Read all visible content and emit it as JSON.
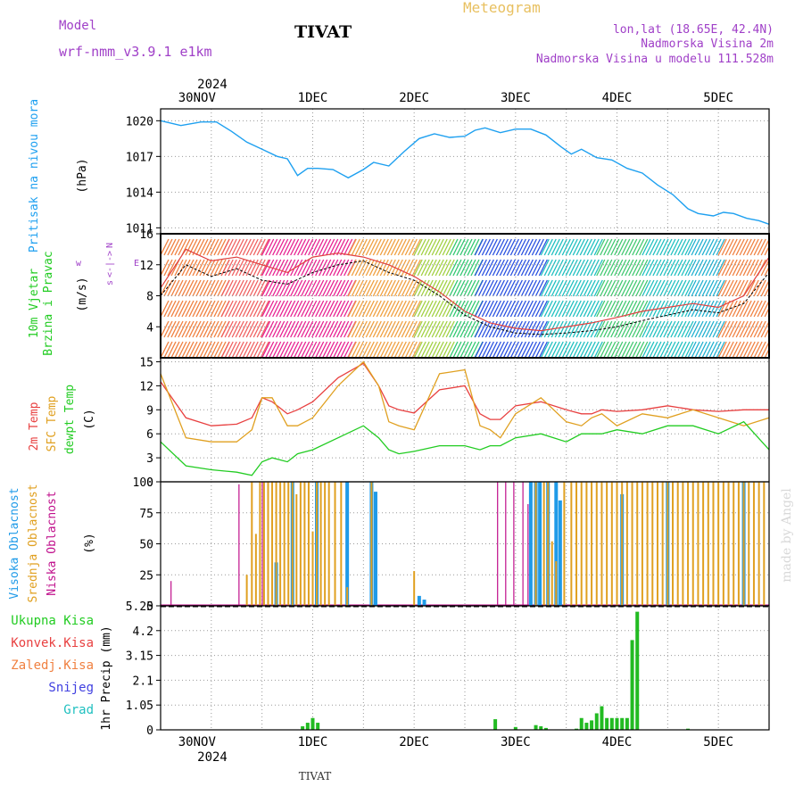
{
  "header": {
    "model_label": "Model",
    "model_name": "wrf-nmm_v3.9.1 e1km",
    "station": "TIVAT",
    "chart_title": "Meteogram",
    "location": "lon,lat (18.65E, 42.4N)",
    "elevation": "Nadmorska Visina 2m",
    "model_elevation": "Nadmorska Visina u modelu 111.528m",
    "footer_station": "TIVAT",
    "credit": "made by Angel"
  },
  "colors": {
    "pressure": "#1ea0f0",
    "wind_speed_line": "#000000",
    "gust_line": "#e04040",
    "temp2m": "#e84040",
    "sfc_temp": "#e0a020",
    "dewpt": "#22cc22",
    "cloud_high": "#1e9ae8",
    "cloud_mid": "#e0a020",
    "cloud_low": "#c0108c",
    "precip_total": "#22bb22",
    "title": "#e8c060",
    "meta": "#a040c8"
  },
  "chart_data": [
    {
      "id": "pressure",
      "type": "line",
      "ylabel_outer": "Pritisak na nivou mora",
      "ylabel_unit": "(hPa)",
      "ylim": [
        1010.5,
        1021
      ],
      "yticks": [
        "1020",
        "1017",
        "1014",
        "1011"
      ],
      "ytick_values": [
        1020,
        1017,
        1014,
        1011
      ],
      "x_days": [
        0,
        0.2,
        0.4,
        0.55,
        0.7,
        0.85,
        1.0,
        1.15,
        1.25,
        1.35,
        1.45,
        1.55,
        1.7,
        1.85,
        2.0,
        2.1,
        2.25,
        2.4,
        2.55,
        2.7,
        2.85,
        3.0,
        3.1,
        3.2,
        3.35,
        3.5,
        3.65,
        3.8,
        3.95,
        4.05,
        4.15,
        4.3,
        4.45,
        4.6,
        4.75,
        4.9,
        5.05,
        5.2,
        5.3,
        5.45,
        5.55,
        5.65,
        5.78,
        5.9,
        6.0
      ],
      "values": [
        1020.0,
        1019.6,
        1019.9,
        1019.9,
        1019.1,
        1018.2,
        1017.6,
        1017.0,
        1016.8,
        1015.4,
        1016.0,
        1016.0,
        1015.9,
        1015.2,
        1015.9,
        1016.5,
        1016.2,
        1017.4,
        1018.5,
        1018.9,
        1018.6,
        1018.7,
        1019.2,
        1019.4,
        1019.0,
        1019.3,
        1019.3,
        1018.8,
        1017.8,
        1017.2,
        1017.6,
        1016.9,
        1016.7,
        1016.0,
        1015.6,
        1014.6,
        1013.8,
        1012.6,
        1012.2,
        1012.0,
        1012.3,
        1012.2,
        1011.8,
        1011.6,
        1011.3
      ]
    },
    {
      "id": "wind",
      "type": "line",
      "ylabel_outer": "10m Vjetar Brzina i Pravac",
      "ylabel_outer_lines": [
        "10m Vjetar",
        "Brzina i Pravac"
      ],
      "ylabel_unit": "(m/s)",
      "ylim": [
        0,
        16
      ],
      "yticks": [
        "16",
        "12",
        "8",
        "4"
      ],
      "ytick_values": [
        16,
        12,
        8,
        4
      ],
      "compass": {
        "north": "N",
        "west": "w",
        "east": "E",
        "south": "s",
        "arrow": "<-|->"
      },
      "x_days": [
        0,
        0.25,
        0.5,
        0.75,
        1.0,
        1.25,
        1.5,
        1.75,
        2.0,
        2.25,
        2.5,
        2.75,
        3.0,
        3.25,
        3.5,
        3.75,
        4.0,
        4.25,
        4.5,
        4.75,
        5.0,
        5.25,
        5.5,
        5.75,
        6.0
      ],
      "speed": [
        8.0,
        12.0,
        10.5,
        11.5,
        10.0,
        9.5,
        11.0,
        12.0,
        12.5,
        11.0,
        10.0,
        8.0,
        5.5,
        4.0,
        3.2,
        3.0,
        3.2,
        3.5,
        4.0,
        4.8,
        5.5,
        6.2,
        5.8,
        7.0,
        11.0
      ],
      "gust": [
        9.0,
        14.0,
        12.5,
        13.0,
        12.0,
        11.0,
        13.0,
        13.5,
        13.0,
        12.0,
        10.5,
        8.5,
        6.0,
        4.5,
        3.8,
        3.5,
        4.0,
        4.5,
        5.2,
        6.0,
        6.5,
        7.0,
        6.5,
        8.0,
        13.0
      ],
      "barb_direction_bands": [
        {
          "from": 0.0,
          "to": 0.6,
          "color": "#f08040"
        },
        {
          "from": 0.6,
          "to": 1.0,
          "color": "#f06060"
        },
        {
          "from": 1.0,
          "to": 1.85,
          "color": "#e82090"
        },
        {
          "from": 1.85,
          "to": 2.5,
          "color": "#f0a040"
        },
        {
          "from": 2.5,
          "to": 2.85,
          "color": "#a0d040"
        },
        {
          "from": 2.85,
          "to": 3.1,
          "color": "#30c870"
        },
        {
          "from": 3.1,
          "to": 3.75,
          "color": "#2850e0"
        },
        {
          "from": 3.75,
          "to": 4.3,
          "color": "#20c0c0"
        },
        {
          "from": 4.3,
          "to": 4.75,
          "color": "#40c870"
        },
        {
          "from": 4.75,
          "to": 5.2,
          "color": "#20c0c0"
        },
        {
          "from": 5.2,
          "to": 5.5,
          "color": "#20b0d0"
        },
        {
          "from": 5.5,
          "to": 6.0,
          "color": "#f08040"
        }
      ]
    },
    {
      "id": "temperature",
      "type": "line",
      "ylabel_outer_lines": [
        "2m Temp",
        "SFC Temp",
        "dewpt Temp"
      ],
      "ylabel_unit": "(C)",
      "ylim": [
        0,
        15.5
      ],
      "yticks": [
        "15",
        "12",
        "9",
        "6",
        "3",
        "0"
      ],
      "ytick_values": [
        15,
        12,
        9,
        6,
        3,
        0
      ],
      "x_days": [
        0,
        0.25,
        0.5,
        0.75,
        0.9,
        1.0,
        1.1,
        1.25,
        1.35,
        1.5,
        1.75,
        2.0,
        2.15,
        2.25,
        2.35,
        2.5,
        2.75,
        3.0,
        3.15,
        3.25,
        3.35,
        3.5,
        3.75,
        4.0,
        4.15,
        4.25,
        4.35,
        4.5,
        4.75,
        5.0,
        5.25,
        5.5,
        5.75,
        6.0
      ],
      "t2m": [
        12.5,
        8.0,
        7.0,
        7.2,
        8.0,
        10.5,
        10.0,
        8.5,
        9.0,
        10.0,
        13.0,
        14.8,
        12.0,
        9.5,
        9.0,
        8.6,
        11.5,
        12.0,
        8.5,
        7.8,
        7.8,
        9.5,
        10.0,
        9.0,
        8.5,
        8.5,
        9.0,
        8.8,
        9.0,
        9.5,
        9.0,
        8.8,
        9.0,
        9.0
      ],
      "sfc": [
        13.5,
        5.5,
        5.0,
        5.0,
        6.5,
        10.5,
        10.5,
        7.0,
        7.0,
        8.0,
        12.0,
        15.0,
        12.0,
        7.5,
        7.0,
        6.5,
        13.5,
        14.0,
        7.0,
        6.5,
        5.5,
        8.5,
        10.5,
        7.5,
        7.0,
        8.0,
        8.5,
        7.0,
        8.5,
        8.0,
        9.0,
        8.0,
        7.0,
        8.0
      ],
      "dewpt": [
        5.0,
        2.0,
        1.5,
        1.2,
        0.8,
        2.5,
        3.0,
        2.5,
        3.5,
        4.0,
        5.5,
        7.0,
        5.5,
        4.0,
        3.5,
        3.8,
        4.5,
        4.5,
        4.0,
        4.5,
        4.5,
        5.5,
        6.0,
        5.0,
        6.0,
        6.0,
        6.0,
        6.5,
        6.0,
        7.0,
        7.0,
        6.0,
        7.5,
        4.0
      ]
    },
    {
      "id": "cloud",
      "type": "bar",
      "ylabel_outer_lines": [
        "Visoka Oblacnost",
        "Srednja Oblacnost",
        "Niska  Oblacnost"
      ],
      "ylabel_unit": "(%)",
      "ylim": [
        0,
        100
      ],
      "yticks": [
        "100",
        "75",
        "50",
        "25",
        "0"
      ],
      "ytick_values": [
        100,
        75,
        50,
        25,
        0
      ],
      "bars": [
        {
          "x": 0.08,
          "low": 20
        },
        {
          "x": 0.75,
          "low": 98
        },
        {
          "x": 0.85,
          "mid": 25
        },
        {
          "x": 0.9,
          "mid": 100
        },
        {
          "x": 0.94,
          "mid": 58
        },
        {
          "x": 0.98,
          "mid": 100,
          "low": 100
        },
        {
          "x": 1.02,
          "mid": 100
        },
        {
          "x": 1.06,
          "mid": 100
        },
        {
          "x": 1.1,
          "mid": 100
        },
        {
          "x": 1.14,
          "mid": 100,
          "high": 35
        },
        {
          "x": 1.18,
          "mid": 100
        },
        {
          "x": 1.22,
          "mid": 100
        },
        {
          "x": 1.26,
          "mid": 100
        },
        {
          "x": 1.3,
          "mid": 100,
          "high": 100
        },
        {
          "x": 1.34,
          "mid": 90
        },
        {
          "x": 1.38,
          "mid": 100
        },
        {
          "x": 1.42,
          "mid": 100
        },
        {
          "x": 1.46,
          "mid": 100
        },
        {
          "x": 1.5,
          "mid": 60
        },
        {
          "x": 1.54,
          "mid": 100,
          "high": 100
        },
        {
          "x": 1.58,
          "mid": 100
        },
        {
          "x": 1.62,
          "mid": 100
        },
        {
          "x": 1.66,
          "mid": 100
        },
        {
          "x": 1.72,
          "mid": 100
        },
        {
          "x": 1.78,
          "mid": 100
        },
        {
          "x": 1.84,
          "mid": 15,
          "high": 100
        },
        {
          "x": 2.08,
          "mid": 100,
          "high": 100
        },
        {
          "x": 2.12,
          "high": 92
        },
        {
          "x": 2.5,
          "mid": 28
        },
        {
          "x": 2.55,
          "high": 8
        },
        {
          "x": 2.6,
          "high": 5
        },
        {
          "x": 3.3,
          "low": 100
        },
        {
          "x": 3.38,
          "low": 100
        },
        {
          "x": 3.46,
          "low": 100
        },
        {
          "x": 3.55,
          "low": 100
        },
        {
          "x": 3.6,
          "low": 82
        },
        {
          "x": 3.65,
          "high": 100
        },
        {
          "x": 3.7,
          "high": 100,
          "mid": 100
        },
        {
          "x": 3.74,
          "high": 100
        },
        {
          "x": 3.78,
          "mid": 100
        },
        {
          "x": 3.82,
          "high": 100,
          "mid": 100
        },
        {
          "x": 3.86,
          "mid": 52
        },
        {
          "x": 3.9,
          "mid": 36,
          "high": 100
        },
        {
          "x": 3.94,
          "high": 85
        },
        {
          "x": 3.98,
          "mid": 100
        },
        {
          "x": 4.05,
          "mid": 100
        },
        {
          "x": 4.1,
          "mid": 100
        },
        {
          "x": 4.15,
          "mid": 100
        },
        {
          "x": 4.2,
          "mid": 100
        },
        {
          "x": 4.25,
          "mid": 100
        },
        {
          "x": 4.3,
          "mid": 100
        },
        {
          "x": 4.35,
          "mid": 100
        },
        {
          "x": 4.4,
          "mid": 100
        },
        {
          "x": 4.45,
          "mid": 100
        },
        {
          "x": 4.5,
          "mid": 100
        },
        {
          "x": 4.55,
          "high": 90,
          "mid": 100
        },
        {
          "x": 4.6,
          "mid": 100
        },
        {
          "x": 4.65,
          "mid": 100
        },
        {
          "x": 4.7,
          "mid": 100
        },
        {
          "x": 4.75,
          "mid": 100
        },
        {
          "x": 4.8,
          "mid": 100
        },
        {
          "x": 4.85,
          "mid": 100
        },
        {
          "x": 4.9,
          "mid": 100
        },
        {
          "x": 4.95,
          "mid": 100
        },
        {
          "x": 5.0,
          "mid": 100,
          "high": 100
        },
        {
          "x": 5.05,
          "mid": 100
        },
        {
          "x": 5.1,
          "mid": 100
        },
        {
          "x": 5.15,
          "mid": 100
        },
        {
          "x": 5.2,
          "mid": 100
        },
        {
          "x": 5.25,
          "mid": 100
        },
        {
          "x": 5.3,
          "mid": 100
        },
        {
          "x": 5.35,
          "mid": 100
        },
        {
          "x": 5.4,
          "mid": 100
        },
        {
          "x": 5.45,
          "mid": 100
        },
        {
          "x": 5.5,
          "mid": 100
        },
        {
          "x": 5.55,
          "mid": 100
        },
        {
          "x": 5.6,
          "mid": 100
        },
        {
          "x": 5.65,
          "mid": 100
        },
        {
          "x": 5.7,
          "mid": 100
        },
        {
          "x": 5.75,
          "mid": 100,
          "high": 100
        },
        {
          "x": 5.8,
          "mid": 100
        },
        {
          "x": 5.85,
          "mid": 100
        },
        {
          "x": 5.9,
          "mid": 100
        },
        {
          "x": 5.95,
          "mid": 100
        }
      ]
    },
    {
      "id": "precip",
      "type": "bar",
      "ylabel_outer_lines": [
        "Ukupna Kisa",
        "Konvek.Kisa",
        "Zaledj.Kisa",
        "Snijeg",
        "Grad"
      ],
      "legend_colors": [
        "#22cc22",
        "#e84040",
        "#f08040",
        "#4040e0",
        "#20c0c0"
      ],
      "ylabel_unit": "1hr Precip (mm)",
      "ylim": [
        0,
        5.25
      ],
      "yticks": [
        "5.25",
        "4.2",
        "3.15",
        "2.1",
        "1.05",
        "0"
      ],
      "ytick_values": [
        5.25,
        4.2,
        3.15,
        2.1,
        1.05,
        0
      ],
      "x_days": [
        1.4,
        1.45,
        1.5,
        1.55,
        3.3,
        3.5,
        3.7,
        3.75,
        3.8,
        4.1,
        4.15,
        4.2,
        4.25,
        4.3,
        4.35,
        4.4,
        4.45,
        4.5,
        4.55,
        4.6,
        4.65,
        4.7,
        5.2
      ],
      "values": [
        0.15,
        0.3,
        0.5,
        0.3,
        0.45,
        0.12,
        0.2,
        0.15,
        0.08,
        0.05,
        0.5,
        0.3,
        0.4,
        0.7,
        1.0,
        0.5,
        0.5,
        0.5,
        0.5,
        0.5,
        3.8,
        5.0,
        0.05
      ]
    }
  ],
  "x_axis": {
    "year": "2024",
    "day_labels": [
      "30NOV",
      "1DEC",
      "2DEC",
      "3DEC",
      "4DEC",
      "5DEC"
    ],
    "day_positions": [
      0.5,
      1.5,
      2.5,
      3.5,
      4.5,
      5.5
    ],
    "x_range_days": [
      0,
      6
    ]
  }
}
